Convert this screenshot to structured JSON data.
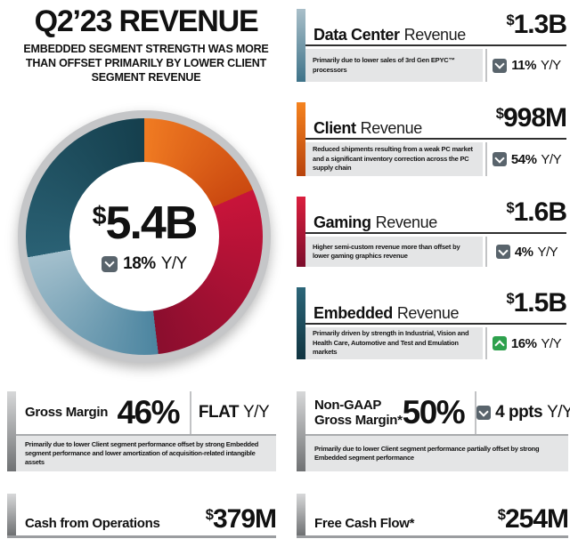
{
  "header": {
    "title": "Q2’23 REVENUE",
    "subtitle": "EMBEDDED SEGMENT STRENGTH WAS MORE THAN OFFSET PRIMARILY BY LOWER CLIENT SEGMENT REVENUE"
  },
  "chart_data": {
    "type": "pie",
    "title": "Q2’23 total revenue by segment",
    "total_label": "$5.4B",
    "total_delta": "down 18% Y/Y",
    "direction": "clockwise",
    "start_angle_deg": 0,
    "legend_position": "none",
    "segments": [
      {
        "label": "Client",
        "value": "$998M",
        "share_pct": 18.5,
        "color_start": "#F07B22",
        "color_end": "#CB4910"
      },
      {
        "label": "Gaming",
        "value": "$1.6B",
        "share_pct": 29.6,
        "color_start": "#C8143A",
        "color_end": "#8A0E2E"
      },
      {
        "label": "Data Center",
        "value": "$1.3B",
        "share_pct": 24.1,
        "color_start": "#4C85A0",
        "color_end": "#A4C0CD"
      },
      {
        "label": "Embedded",
        "value": "$1.5B",
        "share_pct": 27.8,
        "color_start": "#2A6174",
        "color_end": "#153F4D"
      }
    ]
  },
  "donut_center": {
    "currency": "$",
    "amount": "5.4B",
    "delta_value": "18%",
    "delta_period": "Y/Y",
    "delta_direction": "down"
  },
  "cards": [
    {
      "segment": "Data Center",
      "title_suffix": "Revenue",
      "currency": "$",
      "value": "1.3B",
      "description": "Primarily due to lower sales of 3rd Gen EPYC™ processors",
      "delta_direction": "down",
      "delta_value": "11%",
      "delta_period": "Y/Y",
      "bar_gradient": [
        "#A9BFC9",
        "#3E7389"
      ]
    },
    {
      "segment": "Client",
      "title_suffix": "Revenue",
      "currency": "$",
      "value": "998M",
      "description": "Reduced shipments resulting from a weak PC market and a significant inventory correction across the PC supply chain",
      "delta_direction": "down",
      "delta_value": "54%",
      "delta_period": "Y/Y",
      "bar_gradient": [
        "#F5831F",
        "#B8430D"
      ]
    },
    {
      "segment": "Gaming",
      "title_suffix": "Revenue",
      "currency": "$",
      "value": "1.6B",
      "description": "Higher semi-custom revenue more than offset by lower gaming graphics revenue",
      "delta_direction": "down",
      "delta_value": "4%",
      "delta_period": "Y/Y",
      "bar_gradient": [
        "#DB1F3E",
        "#7C0D2B"
      ]
    },
    {
      "segment": "Embedded",
      "title_suffix": "Revenue",
      "currency": "$",
      "value": "1.5B",
      "description": "Primarily driven by strength in Industrial, Vision and Health Care, Automotive and Test and Emulation markets",
      "delta_direction": "up",
      "delta_value": "16%",
      "delta_period": "Y/Y",
      "bar_gradient": [
        "#2C6679",
        "#103440"
      ]
    }
  ],
  "margin_panels": [
    {
      "label": "Gross Margin",
      "value": "46%",
      "delta_direction": "none",
      "delta_value": "FLAT",
      "delta_period": "Y/Y",
      "description": "Primarily due to lower Client segment performance offset by strong Embedded segment performance and lower amortization of acquisition-related intangible assets",
      "bar_gradient": [
        "#D7D8D9",
        "#6F7173"
      ]
    },
    {
      "label_line1": "Non-GAAP",
      "label_line2": "Gross Margin*",
      "value": "50%",
      "delta_direction": "down",
      "delta_value": "4 ppts",
      "delta_period": "Y/Y",
      "description": "Primarily due to lower Client segment performance partially offset by strong Embedded segment performance",
      "bar_gradient": [
        "#D7D8D9",
        "#6F7173"
      ]
    }
  ],
  "cash_panels": [
    {
      "label": "Cash from Operations",
      "currency": "$",
      "value": "379M",
      "bar_gradient": [
        "#D7D8D9",
        "#6F7173"
      ]
    },
    {
      "label": "Free Cash Flow*",
      "currency": "$",
      "value": "254M",
      "bar_gradient": [
        "#D7D8D9",
        "#6F7173"
      ]
    }
  ],
  "colors": {
    "down_chip": "#59646C",
    "up_chip": "#2EA14D",
    "description_box": "#E4E5E6",
    "donut_ring_border": "#C5C6C8",
    "card_rule": "#2F2F2F",
    "panel_rule": "#A9ABAD",
    "cash_underline": "#9B9DA0"
  }
}
